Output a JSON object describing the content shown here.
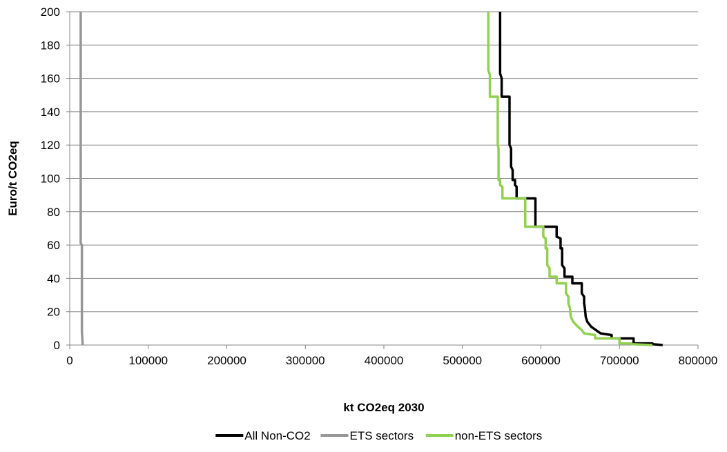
{
  "chart_data": {
    "type": "line",
    "title": "",
    "xlabel": "kt CO2eq 2030",
    "ylabel": "Euro/t CO2eq",
    "xlim": [
      0,
      800000
    ],
    "ylim": [
      0,
      200
    ],
    "xticks": [
      0,
      100000,
      200000,
      300000,
      400000,
      500000,
      600000,
      700000,
      800000
    ],
    "yticks": [
      0,
      20,
      40,
      60,
      80,
      100,
      120,
      140,
      160,
      180,
      200
    ],
    "grid": "horizontal",
    "legend_position": "bottom",
    "series": [
      {
        "name": "All Non-CO2",
        "color": "#000000",
        "points": [
          [
            548000,
            200
          ],
          [
            548000,
            163
          ],
          [
            550000,
            160
          ],
          [
            550000,
            149
          ],
          [
            560000,
            149
          ],
          [
            560000,
            120
          ],
          [
            562000,
            118
          ],
          [
            562000,
            107
          ],
          [
            564000,
            105
          ],
          [
            564000,
            99
          ],
          [
            567000,
            99
          ],
          [
            567000,
            96
          ],
          [
            569000,
            95
          ],
          [
            569000,
            88
          ],
          [
            593000,
            88
          ],
          [
            593000,
            71
          ],
          [
            620000,
            71
          ],
          [
            620000,
            65
          ],
          [
            625000,
            64
          ],
          [
            625000,
            58
          ],
          [
            627000,
            58
          ],
          [
            627000,
            48
          ],
          [
            630000,
            46
          ],
          [
            630000,
            41
          ],
          [
            640000,
            41
          ],
          [
            640000,
            37
          ],
          [
            652000,
            37
          ],
          [
            652000,
            31
          ],
          [
            655000,
            29
          ],
          [
            655000,
            25
          ],
          [
            656000,
            22
          ],
          [
            657000,
            17
          ],
          [
            659000,
            14
          ],
          [
            664000,
            11
          ],
          [
            670000,
            9
          ],
          [
            676000,
            7
          ],
          [
            690000,
            6
          ],
          [
            690000,
            4
          ],
          [
            718000,
            4
          ],
          [
            718000,
            1
          ],
          [
            742000,
            1
          ],
          [
            742000,
            0.5
          ],
          [
            755000,
            0
          ]
        ]
      },
      {
        "name": "ETS sectors",
        "color": "#969696",
        "points": [
          [
            14000,
            200
          ],
          [
            14000,
            120
          ],
          [
            14000,
            61
          ],
          [
            15500,
            60
          ],
          [
            15500,
            37
          ],
          [
            15500,
            8
          ],
          [
            16500,
            0
          ]
        ]
      },
      {
        "name": "non-ETS sectors",
        "color": "#92d050",
        "points": [
          [
            533000,
            200
          ],
          [
            533000,
            165
          ],
          [
            535000,
            162
          ],
          [
            535000,
            149
          ],
          [
            545000,
            149
          ],
          [
            545000,
            120
          ],
          [
            546000,
            118
          ],
          [
            546000,
            99
          ],
          [
            548000,
            99
          ],
          [
            548000,
            96
          ],
          [
            551000,
            95
          ],
          [
            551000,
            88
          ],
          [
            580000,
            88
          ],
          [
            580000,
            71
          ],
          [
            603000,
            71
          ],
          [
            603000,
            65
          ],
          [
            606000,
            64
          ],
          [
            606000,
            58
          ],
          [
            608000,
            58
          ],
          [
            608000,
            48
          ],
          [
            611000,
            46
          ],
          [
            611000,
            41
          ],
          [
            620000,
            41
          ],
          [
            620000,
            37
          ],
          [
            632000,
            37
          ],
          [
            632000,
            31
          ],
          [
            635000,
            29
          ],
          [
            635000,
            25
          ],
          [
            637000,
            22
          ],
          [
            638000,
            17
          ],
          [
            641000,
            14
          ],
          [
            647000,
            11
          ],
          [
            652000,
            9
          ],
          [
            655000,
            7
          ],
          [
            669000,
            6
          ],
          [
            669000,
            4
          ],
          [
            700000,
            4
          ],
          [
            700000,
            1
          ],
          [
            715000,
            1
          ],
          [
            715000,
            0.5
          ],
          [
            742000,
            0
          ]
        ]
      }
    ]
  }
}
